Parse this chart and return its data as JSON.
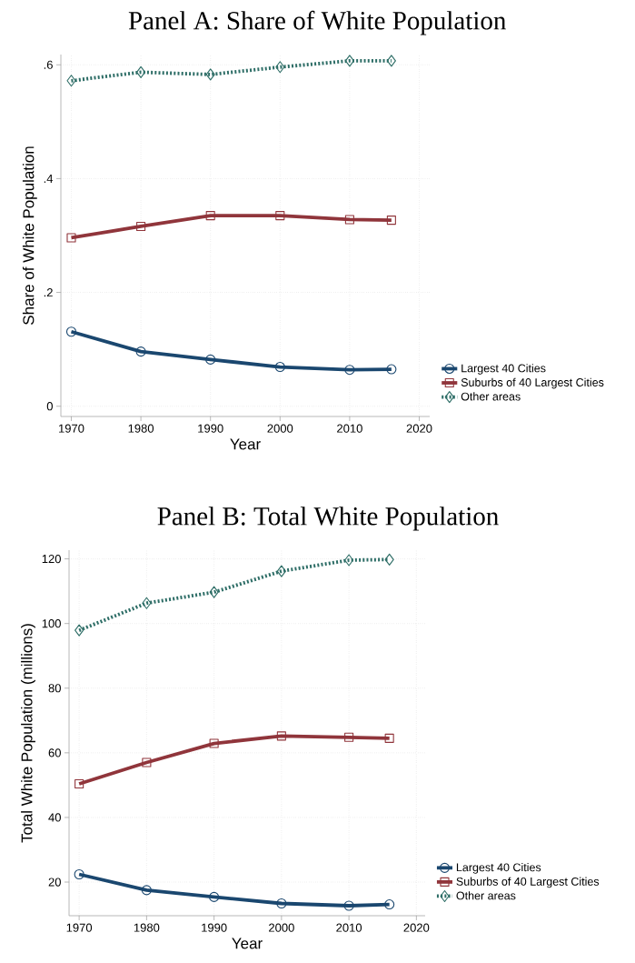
{
  "chart_data": [
    {
      "type": "line",
      "title": "Panel A: Share of White Population",
      "xlabel": "Year",
      "ylabel": "Share of White Population",
      "x": [
        1970,
        1980,
        1990,
        2000,
        2010,
        2016
      ],
      "series": [
        {
          "name": "Largest 40 Cities",
          "color": "#1a476f",
          "marker": "circle",
          "line_style": "solid",
          "values": [
            0.131,
            0.096,
            0.082,
            0.069,
            0.064,
            0.065
          ]
        },
        {
          "name": "Suburbs of 40 Largest Cities",
          "color": "#90353b",
          "marker": "square",
          "line_style": "solid",
          "values": [
            0.296,
            0.316,
            0.335,
            0.335,
            0.328,
            0.327
          ]
        },
        {
          "name": "Other areas",
          "color": "#2d6d66",
          "marker": "diamond",
          "line_style": "dotted",
          "values": [
            0.572,
            0.587,
            0.583,
            0.596,
            0.607,
            0.607
          ]
        }
      ],
      "xlim": [
        1968.5,
        2021.5
      ],
      "xticks": [
        1970,
        1980,
        1990,
        2000,
        2010,
        2020
      ],
      "ylim": [
        -0.018,
        0.618
      ],
      "yticks": [
        0,
        {
          "value": 0.2,
          "label": ".2"
        },
        {
          "value": 0.4,
          "label": ".4"
        },
        {
          "value": 0.6,
          "label": ".6"
        }
      ],
      "grid": true,
      "legend": "bottom right"
    },
    {
      "type": "line",
      "title": "Panel B: Total White Population",
      "xlabel": "Year",
      "ylabel": "Total White Population (millions)",
      "x": [
        1970,
        1980,
        1990,
        2000,
        2010,
        2016
      ],
      "series": [
        {
          "name": "Largest 40 Cities",
          "color": "#1a476f",
          "marker": "circle",
          "line_style": "solid",
          "values": [
            22.4,
            17.5,
            15.4,
            13.4,
            12.7,
            13.1
          ]
        },
        {
          "name": "Suburbs of 40 Largest Cities",
          "color": "#90353b",
          "marker": "square",
          "line_style": "solid",
          "values": [
            50.4,
            57.0,
            62.9,
            65.2,
            64.8,
            64.5
          ]
        },
        {
          "name": "Other areas",
          "color": "#2d6d66",
          "marker": "diamond",
          "line_style": "dotted",
          "values": [
            97.9,
            106.3,
            109.7,
            116.2,
            119.6,
            119.8
          ]
        }
      ],
      "xlim": [
        1968.5,
        2021.3
      ],
      "xticks": [
        1970,
        1980,
        1990,
        2000,
        2010,
        2020
      ],
      "ylim": [
        9.6,
        122.7
      ],
      "yticks": [
        20,
        40,
        60,
        80,
        100,
        120
      ],
      "grid": true,
      "legend": "bottom right"
    }
  ]
}
